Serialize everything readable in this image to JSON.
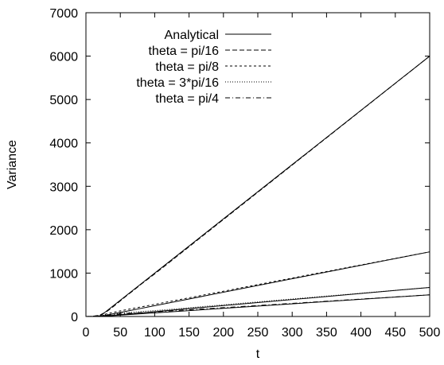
{
  "chart_data": {
    "type": "line",
    "xlabel": "t",
    "ylabel": "Variance",
    "xlim": [
      0,
      500
    ],
    "ylim": [
      0,
      7000
    ],
    "xticks": [
      0,
      50,
      100,
      150,
      200,
      250,
      300,
      350,
      400,
      450,
      500
    ],
    "yticks": [
      0,
      1000,
      2000,
      3000,
      4000,
      5000,
      6000,
      7000
    ],
    "grid": false,
    "legend_position": "top-right",
    "series": [
      {
        "name": "Analytical",
        "dash": "solid",
        "lines": [
          {
            "x": [
              0,
              20,
              500
            ],
            "y": [
              0,
              0,
              6000
            ]
          },
          {
            "x": [
              0,
              20,
              500
            ],
            "y": [
              0,
              0,
              1490
            ]
          },
          {
            "x": [
              0,
              20,
              500
            ],
            "y": [
              0,
              0,
              670
            ]
          },
          {
            "x": [
              0,
              20,
              500
            ],
            "y": [
              0,
              0,
              500
            ]
          }
        ]
      },
      {
        "name": "theta = pi/16",
        "dash": "dashed",
        "lines": [
          {
            "x": [
              0,
              10,
              20,
              30,
              40,
              50,
              60,
              70,
              80,
              100,
              500
            ],
            "y": [
              0,
              5,
              30,
              110,
              230,
              360,
              490,
              610,
              740,
              980,
              6000
            ]
          }
        ]
      },
      {
        "name": "theta = pi/8",
        "dash": "short-dashed",
        "lines": [
          {
            "x": [
              0,
              10,
              20,
              30,
              40,
              50,
              60,
              80,
              100,
              500
            ],
            "y": [
              0,
              5,
              25,
              60,
              95,
              130,
              160,
              220,
              280,
              1490
            ]
          }
        ]
      },
      {
        "name": "theta = 3*pi/16",
        "dash": "dotted",
        "lines": [
          {
            "x": [
              0,
              10,
              20,
              30,
              40,
              50,
              60,
              80,
              100,
              500
            ],
            "y": [
              0,
              5,
              20,
              40,
              60,
              75,
              90,
              115,
              135,
              670
            ]
          }
        ]
      },
      {
        "name": "theta = pi/4",
        "dash": "dash-dot",
        "lines": [
          {
            "x": [
              0,
              10,
              20,
              30,
              40,
              50,
              60,
              80,
              100,
              500
            ],
            "y": [
              0,
              5,
              15,
              30,
              45,
              58,
              70,
              90,
              105,
              500
            ]
          }
        ]
      }
    ]
  }
}
